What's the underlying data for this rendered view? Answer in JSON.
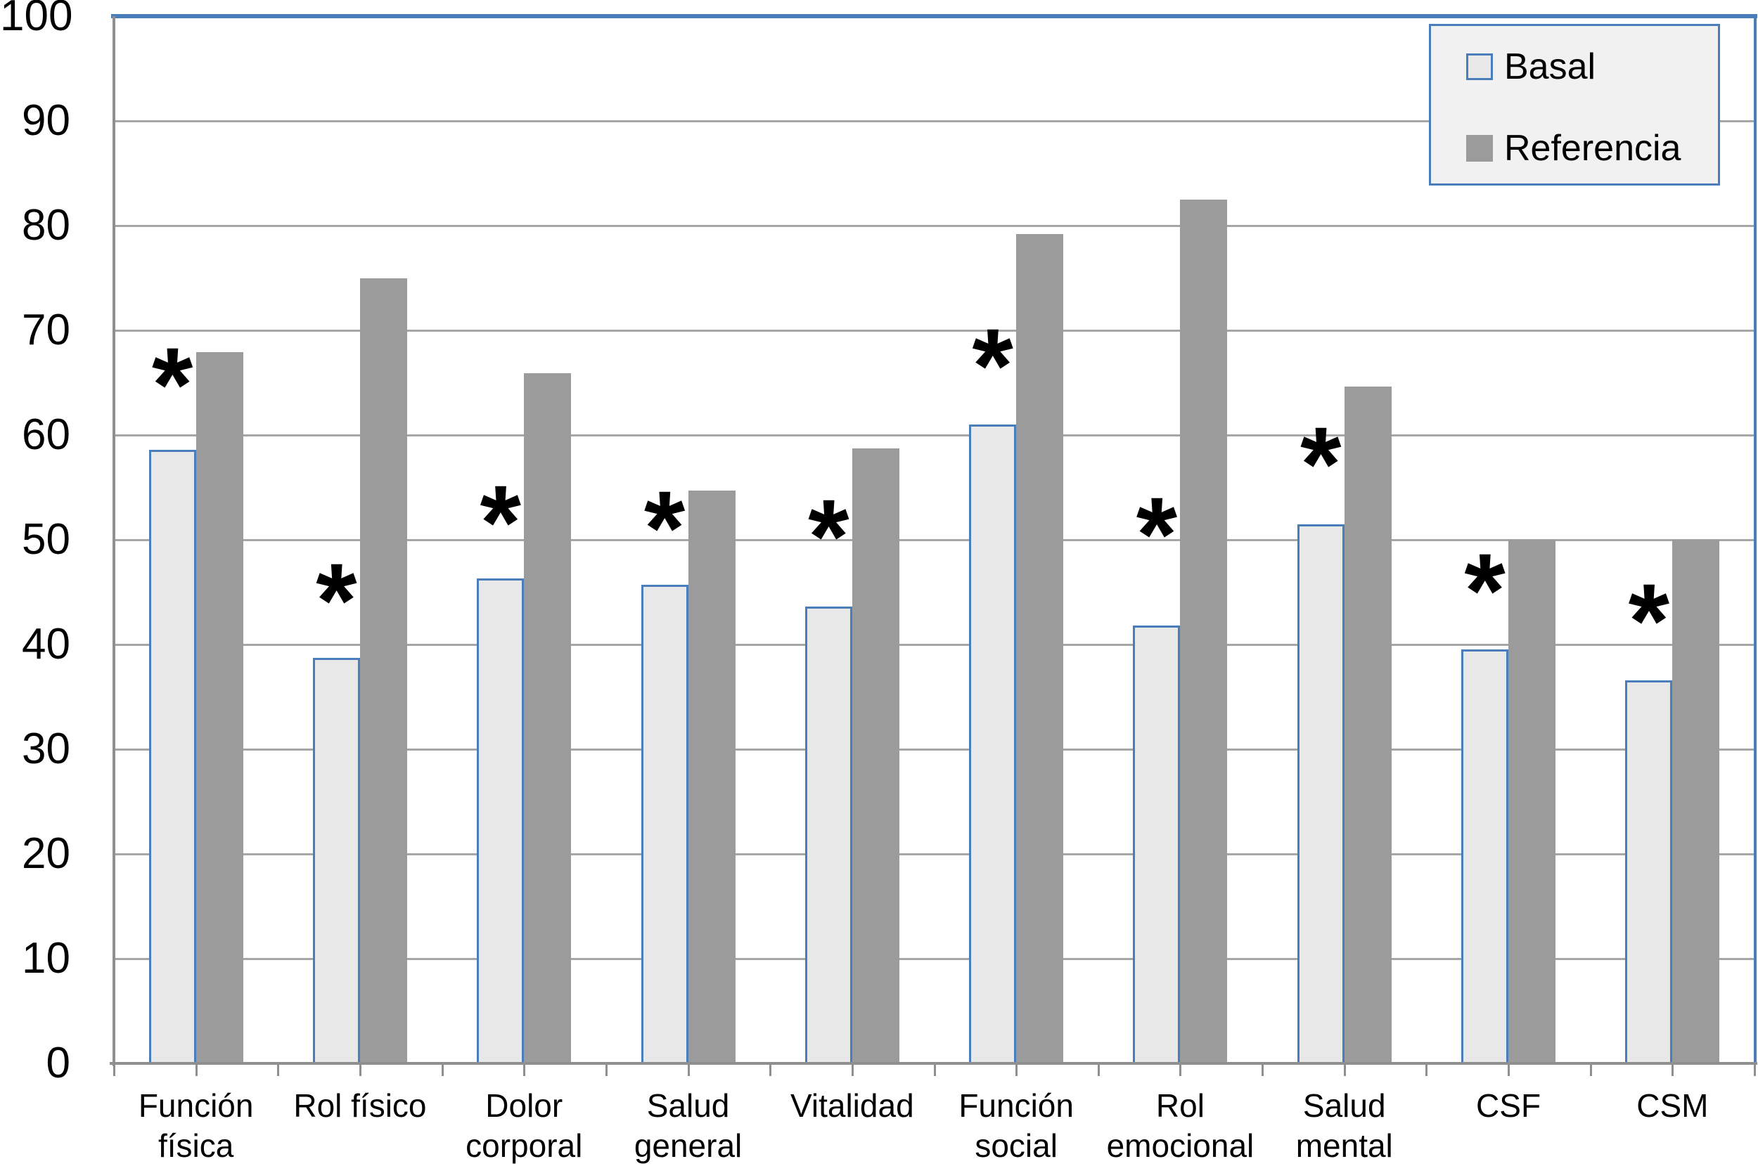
{
  "chart_data": {
    "type": "bar",
    "title": "",
    "xlabel": "",
    "ylabel": "",
    "categories": [
      "Función física",
      "Rol físico",
      "Dolor corporal",
      "Salud general",
      "Vitalidad",
      "Función social",
      "Rol emocional",
      "Salud mental",
      "CSF",
      "CSM"
    ],
    "category_label_lines": [
      [
        "Función",
        "física"
      ],
      [
        "Rol físico"
      ],
      [
        "Dolor",
        "corporal"
      ],
      [
        "Salud",
        "general"
      ],
      [
        "Vitalidad"
      ],
      [
        "Función",
        "social"
      ],
      [
        "Rol",
        "emocional"
      ],
      [
        "Salud",
        "mental"
      ],
      [
        "CSF"
      ],
      [
        "CSM"
      ]
    ],
    "series": [
      {
        "name": "Basal",
        "values": [
          58.6,
          38.7,
          46.3,
          45.7,
          43.6,
          61.0,
          41.8,
          51.5,
          39.5,
          36.6
        ]
      },
      {
        "name": "Referencia",
        "values": [
          67.9,
          75.0,
          65.9,
          54.7,
          58.7,
          79.2,
          82.5,
          64.6,
          50.0,
          50.0
        ]
      }
    ],
    "ylim": [
      0,
      100
    ],
    "ytick_step": 10,
    "yticks": [
      "0",
      "10",
      "20",
      "30",
      "40",
      "50",
      "60",
      "70",
      "80",
      "90",
      "100"
    ],
    "grid": true,
    "legend_position": "top-right",
    "annotations": {
      "symbol": "*",
      "applies_to_series": "Basal",
      "per_category": [
        true,
        true,
        true,
        true,
        true,
        true,
        true,
        true,
        true,
        true
      ],
      "y_centers": [
        66.0,
        45.4,
        52.8,
        52.3,
        51.5,
        67.8,
        51.7,
        58.4,
        46.3,
        43.4
      ]
    }
  },
  "legend": {
    "items": [
      {
        "label": "Basal"
      },
      {
        "label": "Referencia"
      }
    ]
  },
  "colors": {
    "accent_blue": "#4a7ebb",
    "basal_fill": "#e8e8e8",
    "referencia_fill": "#9b9b9b",
    "gridline": "#a6a6a6",
    "axis": "#8f8f8f",
    "legend_bg": "#f1f1f1",
    "text": "#000000",
    "background": "#ffffff"
  }
}
